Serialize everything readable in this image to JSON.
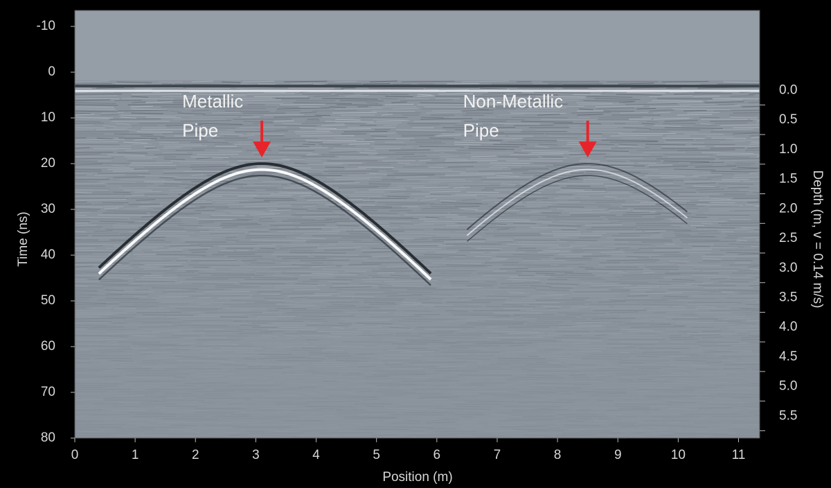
{
  "chart_data": {
    "type": "radargram",
    "xlabel": "Position (m)",
    "ylabel": "Time (ns)",
    "y2label": "Depth (m, v = 0.14 m/s)",
    "xlim": [
      0,
      11.35
    ],
    "xticks": [
      0,
      1,
      2,
      3,
      4,
      5,
      6,
      7,
      8,
      9,
      10,
      11
    ],
    "ylim": [
      -13.5,
      80
    ],
    "yticks": [
      -10,
      0,
      10,
      20,
      30,
      40,
      50,
      60,
      70,
      80
    ],
    "y2lim": [
      -1.35,
      5.87
    ],
    "y2ticks": [
      {
        "value": 0,
        "label": "0.0"
      },
      0.5,
      {
        "value": 1,
        "label": "1.0"
      },
      1.5,
      {
        "value": 2,
        "label": "2.0"
      },
      2.5,
      {
        "value": 3,
        "label": "3.0"
      },
      3.5,
      {
        "value": 4,
        "label": "4.0"
      },
      4.5,
      {
        "value": 5,
        "label": "5.0"
      },
      5.5
    ],
    "annotations": [
      {
        "text": [
          "Metallic",
          "Pipe"
        ],
        "x": 3.1,
        "y": 20,
        "color": "#e8242a"
      },
      {
        "text": [
          "Non-Metallic",
          "Pipe"
        ],
        "x": 8.5,
        "y": 20,
        "color": "#e8242a"
      }
    ]
  }
}
